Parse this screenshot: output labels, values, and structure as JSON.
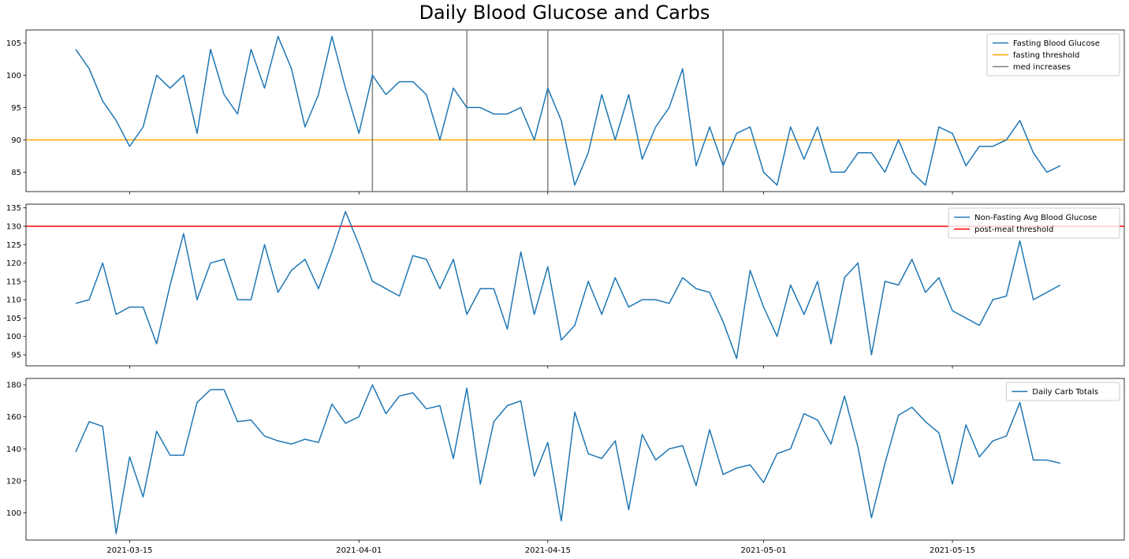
{
  "title": "Daily Blood Glucose and Carbs",
  "x_axis": {
    "start_date": "2021-03-11",
    "end_date": "2021-05-24",
    "ticks": [
      "2021-03-15",
      "2021-04-01",
      "2021-04-15",
      "2021-05-01",
      "2021-05-15"
    ]
  },
  "chart_data": [
    {
      "type": "line",
      "title": "",
      "xlabel": "",
      "ylabel": "",
      "ylim": [
        82,
        107
      ],
      "yticks": [
        85,
        90,
        95,
        100,
        105
      ],
      "grid": false,
      "legend_position": "top-right",
      "series": [
        {
          "name": "Fasting Blood Glucose",
          "color": "#1f77b4",
          "values": [
            104,
            101,
            96,
            93,
            89,
            92,
            100,
            98,
            100,
            91,
            104,
            97,
            94,
            104,
            98,
            106,
            101,
            92,
            97,
            106,
            98,
            91,
            100,
            97,
            99,
            99,
            97,
            90,
            98,
            95,
            95,
            94,
            94,
            95,
            90,
            98,
            93,
            83,
            88,
            97,
            90,
            97,
            87,
            92,
            95,
            101,
            86,
            92,
            86,
            91,
            92,
            85,
            83,
            92,
            87,
            92,
            85,
            85,
            88,
            88,
            85,
            90,
            85,
            83,
            92,
            91,
            86,
            89,
            89,
            90,
            93,
            88,
            85,
            86
          ]
        }
      ],
      "hlines": [
        {
          "name": "fasting threshold",
          "y": 90,
          "color": "#ffa500"
        }
      ],
      "vlines": [
        {
          "name": "med increases",
          "color": "#808080",
          "dates": [
            "2021-04-02",
            "2021-04-09",
            "2021-04-15",
            "2021-04-28"
          ]
        }
      ]
    },
    {
      "type": "line",
      "title": "",
      "xlabel": "",
      "ylabel": "",
      "ylim": [
        92,
        136
      ],
      "yticks": [
        95,
        100,
        105,
        110,
        115,
        120,
        125,
        130,
        135
      ],
      "grid": false,
      "legend_position": "top-right",
      "series": [
        {
          "name": "Non-Fasting Avg Blood Glucose",
          "color": "#1f77b4",
          "values": [
            109,
            110,
            120,
            106,
            108,
            108,
            98,
            114,
            128,
            110,
            120,
            121,
            110,
            110,
            125,
            112,
            118,
            121,
            113,
            123,
            134,
            125,
            115,
            113,
            111,
            122,
            121,
            113,
            121,
            106,
            113,
            113,
            102,
            123,
            106,
            119,
            99,
            103,
            115,
            106,
            116,
            108,
            110,
            110,
            109,
            116,
            113,
            112,
            104,
            94,
            118,
            108,
            100,
            114,
            106,
            115,
            98,
            116,
            120,
            95,
            115,
            114,
            121,
            112,
            116,
            107,
            105,
            103,
            110,
            111,
            126,
            110,
            112,
            114
          ]
        }
      ],
      "hlines": [
        {
          "name": "post-meal threshold",
          "y": 130,
          "color": "#ff0000"
        }
      ],
      "vlines": []
    },
    {
      "type": "line",
      "title": "",
      "xlabel": "",
      "ylabel": "",
      "ylim": [
        83,
        184
      ],
      "yticks": [
        100,
        120,
        140,
        160,
        180
      ],
      "grid": false,
      "legend_position": "top-right",
      "series": [
        {
          "name": "Daily Carb Totals",
          "color": "#1f77b4",
          "values": [
            138,
            157,
            154,
            87,
            135,
            110,
            151,
            136,
            136,
            169,
            177,
            177,
            157,
            158,
            148,
            145,
            143,
            146,
            144,
            168,
            156,
            160,
            180,
            162,
            173,
            175,
            165,
            167,
            134,
            178,
            118,
            157,
            167,
            170,
            123,
            144,
            95,
            163,
            137,
            134,
            145,
            102,
            149,
            133,
            140,
            142,
            117,
            152,
            124,
            128,
            130,
            119,
            137,
            140,
            162,
            158,
            143,
            173,
            141,
            97,
            131,
            161,
            166,
            157,
            150,
            118,
            155,
            135,
            145,
            148,
            169,
            133,
            133,
            131
          ]
        }
      ],
      "hlines": [],
      "vlines": []
    }
  ]
}
